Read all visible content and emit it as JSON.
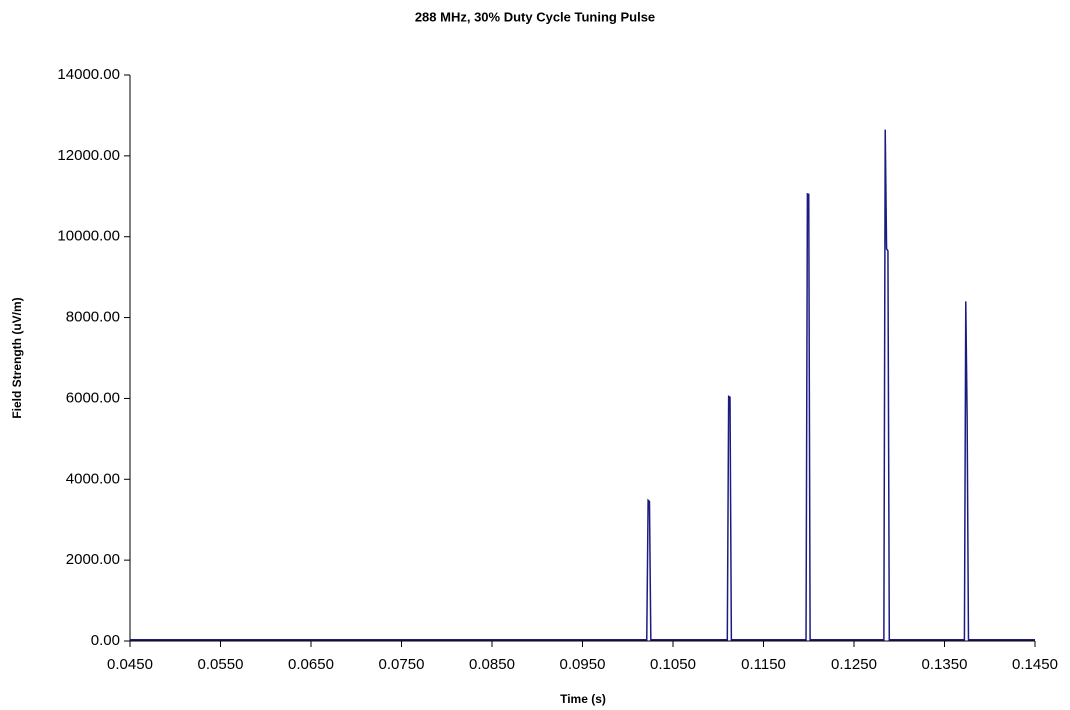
{
  "chart_data": {
    "type": "line",
    "title": "288 MHz, 30% Duty Cycle Tuning Pulse",
    "x_label": "Time (s)",
    "y_label": "Field Strength (uV/m)",
    "x": [
      0.045,
      0.1021,
      0.10225,
      0.1024,
      0.10255,
      0.111,
      0.11115,
      0.1113,
      0.11145,
      0.1197,
      0.11985,
      0.12,
      0.12015,
      0.1283,
      0.12845,
      0.1286,
      0.12875,
      0.1289,
      0.1372,
      0.13735,
      0.1375,
      0.13765,
      0.145
    ],
    "series": [
      {
        "name": "Field Strength",
        "color": "#1c1c80",
        "values": [
          30,
          30,
          3480,
          3450,
          30,
          30,
          6050,
          6030,
          30,
          30,
          11060,
          11050,
          30,
          30,
          12650,
          9700,
          9650,
          30,
          30,
          8400,
          5550,
          30,
          30
        ]
      }
    ],
    "xlim": [
      0.045,
      0.145
    ],
    "xticks": [
      {
        "value": 0.045,
        "label": "0.0450"
      },
      {
        "value": 0.055,
        "label": "0.0550"
      },
      {
        "value": 0.065,
        "label": "0.0650"
      },
      {
        "value": 0.075,
        "label": "0.0750"
      },
      {
        "value": 0.085,
        "label": "0.0850"
      },
      {
        "value": 0.095,
        "label": "0.0950"
      },
      {
        "value": 0.105,
        "label": "0.1050"
      },
      {
        "value": 0.115,
        "label": "0.1150"
      },
      {
        "value": 0.125,
        "label": "0.1250"
      },
      {
        "value": 0.135,
        "label": "0.1350"
      },
      {
        "value": 0.145,
        "label": "0.1450"
      }
    ],
    "ylim": [
      0,
      14000
    ],
    "yticks": [
      {
        "value": 0,
        "label": "0.00"
      },
      {
        "value": 2000,
        "label": "2000.00"
      },
      {
        "value": 4000,
        "label": "4000.00"
      },
      {
        "value": 6000,
        "label": "6000.00"
      },
      {
        "value": 8000,
        "label": "8000.00"
      },
      {
        "value": 10000,
        "label": "10000.00"
      },
      {
        "value": 12000,
        "label": "12000.00"
      },
      {
        "value": 14000,
        "label": "14000.00"
      }
    ],
    "grid": false
  }
}
